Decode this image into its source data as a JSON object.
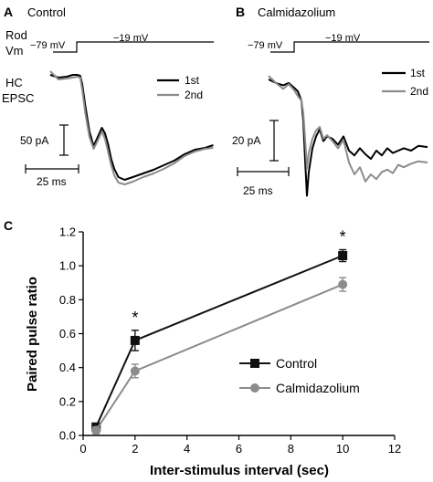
{
  "panels": {
    "A": {
      "letter": "A",
      "title": "Control",
      "row1": "Rod",
      "row2": "Vm",
      "vm_hold": "−79 mV",
      "vm_step": "−19 mV",
      "hc1": "HC",
      "hc2": "EPSC",
      "legend": [
        "1st",
        "2nd"
      ],
      "scale_y": "50 pA",
      "scale_x": "25 ms"
    },
    "B": {
      "letter": "B",
      "title": "Calmidazolium",
      "vm_hold": "−79 mV",
      "vm_step": "−19 mV",
      "legend": [
        "1st",
        "2nd"
      ],
      "scale_y": "20 pA",
      "scale_x": "25 ms"
    },
    "C": {
      "letter": "C"
    }
  },
  "colors": {
    "first": "#000000",
    "second": "#8c8c8c",
    "control": "#111111",
    "calmidazolium": "#8c8c8c"
  },
  "chart_data": [
    {
      "type": "line",
      "panel": "A",
      "series": [
        {
          "name": "1st",
          "color": "#000000",
          "values": [
            [
              0,
              0
            ],
            [
              8,
              -3
            ],
            [
              16,
              -2
            ],
            [
              22,
              0
            ],
            [
              26,
              0
            ],
            [
              29,
              -1
            ],
            [
              31,
              -10
            ],
            [
              34,
              -34
            ],
            [
              38,
              -62
            ],
            [
              42,
              -78
            ],
            [
              46,
              -68
            ],
            [
              50,
              -58
            ],
            [
              53,
              -64
            ],
            [
              56,
              -76
            ],
            [
              59,
              -92
            ],
            [
              62,
              -103
            ],
            [
              66,
              -112
            ],
            [
              72,
              -115
            ],
            [
              80,
              -112
            ],
            [
              90,
              -108
            ],
            [
              100,
              -104
            ],
            [
              110,
              -99
            ],
            [
              120,
              -94
            ],
            [
              130,
              -87
            ],
            [
              140,
              -82
            ],
            [
              150,
              -80
            ],
            [
              158,
              -77
            ]
          ]
        },
        {
          "name": "2nd",
          "color": "#8c8c8c",
          "values": [
            [
              0,
              4
            ],
            [
              8,
              -5
            ],
            [
              16,
              -4
            ],
            [
              22,
              -3
            ],
            [
              26,
              -2
            ],
            [
              29,
              -3
            ],
            [
              31,
              -16
            ],
            [
              34,
              -42
            ],
            [
              38,
              -68
            ],
            [
              42,
              -81
            ],
            [
              46,
              -72
            ],
            [
              50,
              -62
            ],
            [
              53,
              -70
            ],
            [
              56,
              -84
            ],
            [
              59,
              -99
            ],
            [
              62,
              -110
            ],
            [
              66,
              -118
            ],
            [
              72,
              -120
            ],
            [
              80,
              -117
            ],
            [
              90,
              -112
            ],
            [
              100,
              -108
            ],
            [
              110,
              -103
            ],
            [
              120,
              -97
            ],
            [
              130,
              -89
            ],
            [
              140,
              -84
            ],
            [
              150,
              -81
            ],
            [
              158,
              -80
            ]
          ]
        }
      ],
      "xlabel": "",
      "ylabel": ""
    },
    {
      "type": "line",
      "panel": "B",
      "series": [
        {
          "name": "1st",
          "color": "#000000",
          "values": [
            [
              0,
              0
            ],
            [
              8,
              -3
            ],
            [
              16,
              -5
            ],
            [
              22,
              -3
            ],
            [
              28,
              -7
            ],
            [
              32,
              -10
            ],
            [
              36,
              -18
            ],
            [
              38,
              -35
            ],
            [
              40,
              -68
            ],
            [
              42,
              -98
            ],
            [
              44,
              -78
            ],
            [
              48,
              -58
            ],
            [
              52,
              -48
            ],
            [
              56,
              -42
            ],
            [
              60,
              -52
            ],
            [
              64,
              -48
            ],
            [
              70,
              -50
            ],
            [
              76,
              -55
            ],
            [
              82,
              -48
            ],
            [
              88,
              -60
            ],
            [
              94,
              -64
            ],
            [
              100,
              -58
            ],
            [
              106,
              -63
            ],
            [
              112,
              -67
            ],
            [
              118,
              -60
            ],
            [
              124,
              -64
            ],
            [
              130,
              -58
            ],
            [
              136,
              -62
            ],
            [
              142,
              -60
            ],
            [
              148,
              -58
            ],
            [
              156,
              -60
            ],
            [
              164,
              -56
            ],
            [
              174,
              -57
            ]
          ]
        },
        {
          "name": "2nd",
          "color": "#8c8c8c",
          "values": [
            [
              0,
              3
            ],
            [
              8,
              -3
            ],
            [
              16,
              -8
            ],
            [
              22,
              -4
            ],
            [
              28,
              -9
            ],
            [
              32,
              -14
            ],
            [
              36,
              -18
            ],
            [
              38,
              -28
            ],
            [
              40,
              -50
            ],
            [
              42,
              -75
            ],
            [
              44,
              -62
            ],
            [
              48,
              -50
            ],
            [
              52,
              -43
            ],
            [
              56,
              -40
            ],
            [
              60,
              -50
            ],
            [
              64,
              -47
            ],
            [
              70,
              -52
            ],
            [
              76,
              -58
            ],
            [
              82,
              -51
            ],
            [
              88,
              -70
            ],
            [
              94,
              -80
            ],
            [
              100,
              -74
            ],
            [
              106,
              -86
            ],
            [
              112,
              -80
            ],
            [
              118,
              -84
            ],
            [
              124,
              -78
            ],
            [
              130,
              -76
            ],
            [
              136,
              -79
            ],
            [
              142,
              -72
            ],
            [
              148,
              -74
            ],
            [
              156,
              -71
            ],
            [
              164,
              -69
            ],
            [
              174,
              -70
            ]
          ]
        }
      ],
      "xlabel": "",
      "ylabel": ""
    },
    {
      "type": "line",
      "panel": "C",
      "xlabel": "Inter-stimulus interval (sec)",
      "ylabel": "Paired pulse ratio",
      "xlim": [
        0,
        12
      ],
      "ylim": [
        0,
        1.2
      ],
      "xticks": [
        0,
        2,
        4,
        6,
        8,
        10,
        12
      ],
      "yticks": [
        0.0,
        0.2,
        0.4,
        0.6,
        0.8,
        1.0,
        1.2
      ],
      "ytick_labels": [
        "0.0",
        "0.2",
        "0.4",
        "0.6",
        "0.8",
        "1.0",
        "1.2"
      ],
      "legend_position": "bottom-right",
      "series": [
        {
          "name": "Control",
          "marker": "square",
          "color": "#111111",
          "x": [
            0.5,
            2,
            10
          ],
          "y": [
            0.05,
            0.56,
            1.06
          ],
          "err": [
            0.02,
            0.06,
            0.035
          ]
        },
        {
          "name": "Calmidazolium",
          "marker": "circle",
          "color": "#8c8c8c",
          "x": [
            0.5,
            2,
            10
          ],
          "y": [
            0.03,
            0.38,
            0.89
          ],
          "err": [
            0.02,
            0.04,
            0.04
          ]
        }
      ],
      "annotations": [
        {
          "text": "*",
          "x": 2
        },
        {
          "text": "*",
          "x": 10
        }
      ]
    }
  ]
}
